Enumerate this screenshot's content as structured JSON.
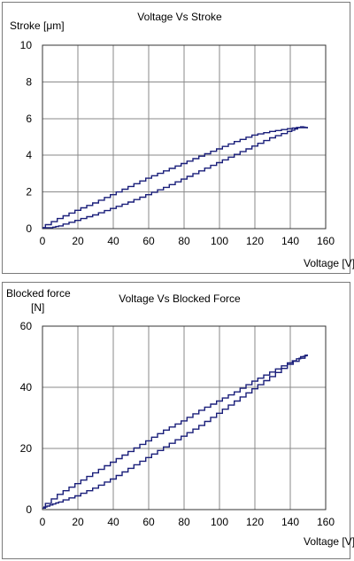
{
  "chart_data": [
    {
      "type": "line",
      "title": "Voltage Vs Stroke",
      "xlabel": "Voltage [V]",
      "ylabel": "Stroke [μm]",
      "xlim": [
        0,
        160
      ],
      "ylim": [
        0,
        10
      ],
      "xticks": [
        "0",
        "20",
        "40",
        "60",
        "80",
        "100",
        "120",
        "140",
        "160"
      ],
      "yticks": [
        "0",
        "2",
        "4",
        "6",
        "8",
        "10"
      ],
      "grid": true,
      "series": [
        {
          "x": [
            0,
            10,
            20,
            30,
            40,
            50,
            60,
            70,
            80,
            90,
            100,
            110,
            120,
            130,
            140,
            147,
            150
          ],
          "y": [
            0.05,
            0.55,
            1.0,
            1.4,
            1.85,
            2.3,
            2.75,
            3.15,
            3.55,
            3.95,
            4.35,
            4.75,
            5.1,
            5.3,
            5.45,
            5.55,
            5.5
          ]
        },
        {
          "x": [
            150,
            145,
            140,
            130,
            120,
            110,
            100,
            90,
            80,
            70,
            60,
            50,
            40,
            30,
            20,
            10,
            5,
            0
          ],
          "y": [
            5.5,
            5.5,
            5.3,
            4.95,
            4.5,
            4.05,
            3.6,
            3.15,
            2.7,
            2.25,
            1.85,
            1.45,
            1.1,
            0.75,
            0.45,
            0.15,
            0.05,
            0.05
          ]
        }
      ]
    },
    {
      "type": "line",
      "title": "Voltage Vs Blocked Force",
      "xlabel": "Voltage [V]",
      "ylabel": "Blocked force [N]",
      "xlim": [
        0,
        160
      ],
      "ylim": [
        0,
        60
      ],
      "xticks": [
        "0",
        "20",
        "40",
        "60",
        "80",
        "100",
        "120",
        "140",
        "160"
      ],
      "yticks": [
        "0",
        "20",
        "40",
        "60"
      ],
      "grid": true,
      "series": [
        {
          "x": [
            0,
            10,
            20,
            30,
            40,
            50,
            60,
            70,
            80,
            90,
            100,
            110,
            120,
            130,
            140,
            147,
            150
          ],
          "y": [
            0.5,
            5.0,
            8.5,
            12.0,
            15.5,
            19.0,
            22.5,
            26.0,
            29.0,
            32.5,
            35.5,
            38.5,
            42.0,
            45.0,
            48.0,
            50.0,
            50.5
          ]
        },
        {
          "x": [
            150,
            140,
            130,
            120,
            110,
            100,
            90,
            80,
            70,
            60,
            50,
            40,
            30,
            20,
            10,
            5,
            0
          ],
          "y": [
            50.5,
            47.5,
            43.5,
            39.5,
            35.5,
            31.5,
            27.5,
            24.0,
            20.5,
            17.0,
            13.5,
            10.0,
            7.0,
            4.5,
            2.5,
            1.5,
            0.5
          ]
        }
      ]
    }
  ]
}
